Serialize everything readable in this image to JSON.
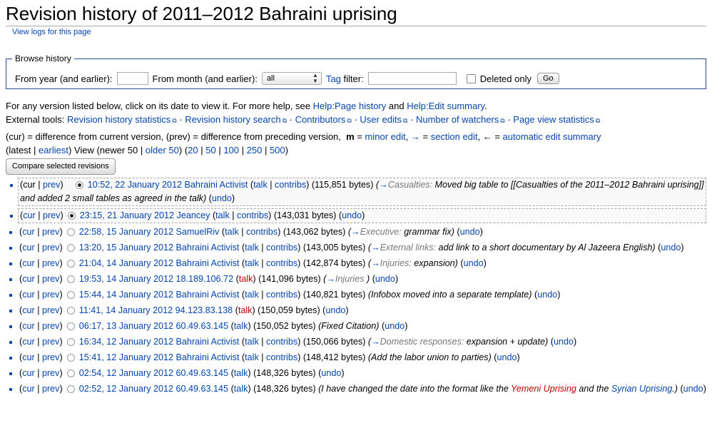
{
  "page": {
    "title": "Revision history of 2011–2012 Bahraini uprising",
    "view_logs": "View logs for this page"
  },
  "browse": {
    "legend": "Browse history",
    "from_year_label": "From year (and earlier):",
    "from_month_label": "From month (and earlier):",
    "month_value": "all",
    "tag_link": "Tag",
    "filter_label": "filter:",
    "deleted_only": "Deleted only",
    "go": "Go"
  },
  "info": {
    "line1_prefix": "For any version listed below, click on its date to view it. For more help, see",
    "help_page_history": "Help:Page history",
    "and": "and",
    "help_edit_summary": "Help:Edit summary",
    "line1_suffix": ".",
    "external_tools": "External tools:",
    "tools": [
      "Revision history statistics",
      "Revision history search",
      "Contributors",
      "User edits",
      "Number of watchers",
      "Page view statistics"
    ],
    "legend_line": "(cur) = difference from current version, (prev) = difference from preceding version,",
    "m": "m",
    "minor_edit": "minor edit",
    "section_edit": "section edit",
    "auto_summary": "automatic edit summary",
    "eq": "=",
    "nav": {
      "latest": "latest",
      "earliest": "earliest",
      "view_newer": "View (newer 50",
      "older": "older 50",
      "limits": [
        "20",
        "50",
        "100",
        "250",
        "500"
      ]
    },
    "compare": "Compare selected revisions"
  },
  "revisions": [
    {
      "date": "10:52, 22 January 2012",
      "user": "Bahraini Activist",
      "user_red": false,
      "talk": "talk",
      "talk_red": false,
      "contribs": true,
      "bytes": "(115,851 bytes)",
      "section": "Casualties:",
      "summary": "Moved big table to [[Casualties of the 2011–2012 Bahraini uprising]] and added 2 small tables as agreed in the talk)",
      "cur": false,
      "prev": true,
      "radio1": "on",
      "radio2": "hide"
    },
    {
      "date": "23:15, 21 January 2012",
      "user": "Jeancey",
      "user_red": false,
      "talk": "talk",
      "talk_red": false,
      "contribs": true,
      "bytes": "(143,031 bytes)",
      "section": "",
      "summary": "",
      "cur": true,
      "prev": true,
      "radio1": "on",
      "radio2": "hide"
    },
    {
      "date": "22:58, 15 January 2012",
      "user": "SamuelRiv",
      "user_red": false,
      "talk": "talk",
      "talk_red": false,
      "contribs": true,
      "bytes": "(143,062 bytes)",
      "section": "Executive:",
      "summary": "grammar fix)",
      "cur": true,
      "prev": true,
      "radio1": "off",
      "radio2": ""
    },
    {
      "date": "13:20, 15 January 2012",
      "user": "Bahraini Activist",
      "user_red": false,
      "talk": "talk",
      "talk_red": false,
      "contribs": true,
      "bytes": "(143,005 bytes)",
      "section": "External links:",
      "summary": "add link to a short documentary by Al Jazeera English)",
      "cur": true,
      "prev": true,
      "radio1": "off",
      "radio2": ""
    },
    {
      "date": "21:04, 14 January 2012",
      "user": "Bahraini Activist",
      "user_red": false,
      "talk": "talk",
      "talk_red": false,
      "contribs": true,
      "bytes": "(142,874 bytes)",
      "section": "Injuries:",
      "summary": "expansion)",
      "cur": true,
      "prev": true,
      "radio1": "off",
      "radio2": ""
    },
    {
      "date": "19:53, 14 January 2012",
      "user": "18.189.106.72",
      "user_red": false,
      "talk": "talk",
      "talk_red": true,
      "contribs": false,
      "bytes": "(141,096 bytes)",
      "section": "Injuries",
      "summary": ")",
      "cur": true,
      "prev": true,
      "radio1": "off",
      "radio2": ""
    },
    {
      "date": "15:44, 14 January 2012",
      "user": "Bahraini Activist",
      "user_red": false,
      "talk": "talk",
      "talk_red": false,
      "contribs": true,
      "bytes": "(140,821 bytes)",
      "section": "",
      "summary": "(Infobox moved into a separate template)",
      "cur": true,
      "prev": true,
      "radio1": "off",
      "radio2": ""
    },
    {
      "date": "11:41, 14 January 2012",
      "user": "94.123.83.138",
      "user_red": false,
      "talk": "talk",
      "talk_red": true,
      "contribs": false,
      "bytes": "(150,059 bytes)",
      "section": "",
      "summary": "",
      "cur": true,
      "prev": true,
      "radio1": "off",
      "radio2": ""
    },
    {
      "date": "06:17, 13 January 2012",
      "user": "60.49.63.145",
      "user_red": false,
      "talk": "talk",
      "talk_red": false,
      "contribs": false,
      "bytes": "(150,052 bytes)",
      "section": "",
      "summary": "(Fixed Citation)",
      "cur": true,
      "prev": true,
      "radio1": "off",
      "radio2": ""
    },
    {
      "date": "16:34, 12 January 2012",
      "user": "Bahraini Activist",
      "user_red": false,
      "talk": "talk",
      "talk_red": false,
      "contribs": true,
      "bytes": "(150,066 bytes)",
      "section": "Domestic responses:",
      "summary": "expansion + update)",
      "cur": true,
      "prev": true,
      "radio1": "off",
      "radio2": ""
    },
    {
      "date": "15:41, 12 January 2012",
      "user": "Bahraini Activist",
      "user_red": false,
      "talk": "talk",
      "talk_red": false,
      "contribs": true,
      "bytes": "(148,412 bytes)",
      "section": "",
      "summary": "(Add the labor union to parties)",
      "cur": true,
      "prev": true,
      "radio1": "off",
      "radio2": ""
    },
    {
      "date": "02:54, 12 January 2012",
      "user": "60.49.63.145",
      "user_red": false,
      "talk": "talk",
      "talk_red": false,
      "contribs": false,
      "bytes": "(148,326 bytes)",
      "section": "",
      "summary": "",
      "cur": true,
      "prev": true,
      "radio1": "off",
      "radio2": ""
    },
    {
      "date": "02:52, 12 January 2012",
      "user": "60.49.63.145",
      "user_red": false,
      "talk": "talk",
      "talk_red": false,
      "contribs": false,
      "bytes": "(148,326 bytes)",
      "section": "",
      "summary": "",
      "cur": true,
      "prev": true,
      "radio1": "off",
      "radio2": "",
      "rich_summary": {
        "pre": "(I have changed the date into the format like the",
        "link1": "Yemeni Uprising",
        "mid": "and the",
        "link2": "Syrian Uprising",
        "post": ".)"
      }
    }
  ],
  "labels": {
    "cur": "cur",
    "prev": "prev",
    "contribs": "contribs",
    "undo": "undo",
    "sep": "|"
  },
  "colors": {
    "link": "#0645ad",
    "redlink": "#ba0000",
    "fieldset_border": "#2a4b8d"
  }
}
